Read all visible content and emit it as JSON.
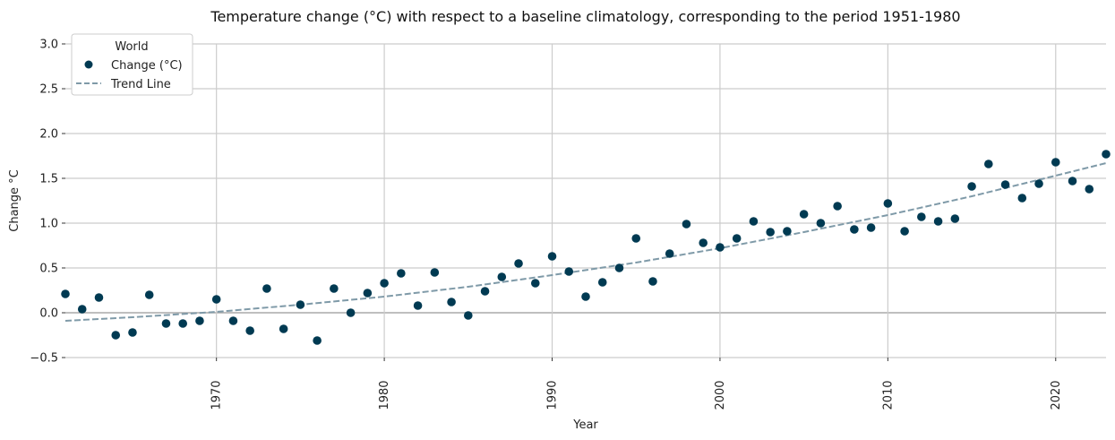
{
  "chart_data": {
    "type": "scatter",
    "title": "Temperature change (°C) with respect to a baseline climatology, corresponding to the period 1951-1980",
    "xlabel": "Year",
    "ylabel": "Change °C",
    "xlim": [
      1961,
      2023
    ],
    "ylim": [
      -0.5,
      3.0
    ],
    "x_ticks": [
      1970,
      1980,
      1990,
      2000,
      2010,
      2020
    ],
    "y_ticks": [
      -0.5,
      0.0,
      0.5,
      1.0,
      1.5,
      2.0,
      2.5,
      3.0
    ],
    "y_tick_labels": [
      "−0.5",
      "0.0",
      "0.5",
      "1.0",
      "1.5",
      "2.0",
      "2.5",
      "3.0"
    ],
    "grid": true,
    "legend": {
      "title": "World",
      "placement": "top-left",
      "entries": [
        "Change (°C)",
        "Trend Line"
      ]
    },
    "colors": {
      "points": "#003a52",
      "trend": "#7f9aa8",
      "grid": "#cccccc",
      "zero_line": "#aaaaaa"
    },
    "series": [
      {
        "name": "Change (°C)",
        "kind": "points",
        "x": [
          1961,
          1962,
          1963,
          1964,
          1965,
          1966,
          1967,
          1968,
          1969,
          1970,
          1971,
          1972,
          1973,
          1974,
          1975,
          1976,
          1977,
          1978,
          1979,
          1980,
          1981,
          1982,
          1983,
          1984,
          1985,
          1986,
          1987,
          1988,
          1989,
          1990,
          1991,
          1992,
          1993,
          1994,
          1995,
          1996,
          1997,
          1998,
          1999,
          2000,
          2001,
          2002,
          2003,
          2004,
          2005,
          2006,
          2007,
          2008,
          2009,
          2010,
          2011,
          2012,
          2013,
          2014,
          2015,
          2016,
          2017,
          2018,
          2019,
          2020,
          2021,
          2022,
          2023
        ],
        "y": [
          0.21,
          0.04,
          0.17,
          -0.25,
          -0.22,
          0.2,
          -0.12,
          -0.12,
          -0.09,
          0.15,
          -0.09,
          -0.2,
          0.27,
          -0.18,
          0.09,
          -0.31,
          0.27,
          0.0,
          0.22,
          0.33,
          0.44,
          0.08,
          0.45,
          0.12,
          -0.03,
          0.24,
          0.4,
          0.55,
          0.33,
          0.63,
          0.46,
          0.18,
          0.34,
          0.5,
          0.83,
          0.35,
          0.66,
          0.99,
          0.78,
          0.73,
          0.83,
          1.02,
          0.9,
          0.91,
          1.1,
          1.0,
          1.19,
          0.93,
          0.95,
          1.22,
          0.91,
          1.07,
          1.02,
          1.05,
          1.41,
          1.66,
          1.43,
          1.28,
          1.44,
          1.68,
          1.47,
          1.38,
          1.77
        ]
      },
      {
        "name": "Trend Line",
        "kind": "trend",
        "x": [
          1961,
          1965,
          1970,
          1975,
          1980,
          1985,
          1990,
          1995,
          2000,
          2005,
          2010,
          2015,
          2020,
          2023
        ],
        "y": [
          -0.09,
          -0.05,
          0.01,
          0.09,
          0.18,
          0.29,
          0.42,
          0.56,
          0.72,
          0.9,
          1.09,
          1.3,
          1.53,
          1.67
        ]
      }
    ]
  }
}
